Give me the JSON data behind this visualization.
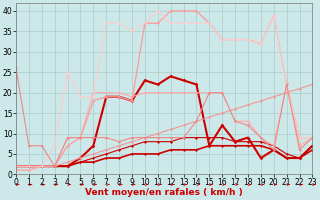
{
  "background_color": "#cce8e8",
  "grid_color": "#aacccc",
  "xlabel": "Vent moyen/en rafales ( km/h )",
  "xlabel_color": "#cc0000",
  "xlabel_fontsize": 6.5,
  "ylabel_ticks": [
    0,
    5,
    10,
    15,
    20,
    25,
    30,
    35,
    40
  ],
  "xticks": [
    0,
    1,
    2,
    3,
    4,
    5,
    6,
    7,
    8,
    9,
    10,
    11,
    12,
    13,
    14,
    15,
    16,
    17,
    18,
    19,
    20,
    21,
    22,
    23
  ],
  "xlim": [
    0,
    23
  ],
  "ylim": [
    0,
    42
  ],
  "series": [
    {
      "x": [
        0,
        1,
        2,
        3,
        4,
        5,
        6,
        7,
        8,
        9,
        10,
        11,
        12,
        13,
        14,
        15,
        16,
        17,
        18,
        19,
        20,
        21,
        22,
        23
      ],
      "y": [
        2,
        2,
        2,
        2,
        2,
        3,
        3,
        4,
        4,
        5,
        5,
        5,
        6,
        6,
        6,
        7,
        7,
        7,
        7,
        7,
        6,
        4,
        4,
        6
      ],
      "color": "#cc0000",
      "lw": 1.2,
      "marker": "D",
      "ms": 1.5
    },
    {
      "x": [
        0,
        1,
        2,
        3,
        4,
        5,
        6,
        7,
        8,
        9,
        10,
        11,
        12,
        13,
        14,
        15,
        16,
        17,
        18,
        19,
        20,
        21,
        22,
        23
      ],
      "y": [
        2,
        2,
        2,
        2,
        2,
        3,
        4,
        5,
        6,
        7,
        8,
        8,
        8,
        9,
        9,
        9,
        9,
        8,
        8,
        8,
        7,
        5,
        4,
        7
      ],
      "color": "#cc0000",
      "lw": 0.8,
      "marker": "D",
      "ms": 1.5
    },
    {
      "x": [
        0,
        1,
        2,
        3,
        4,
        5,
        6,
        7,
        8,
        9,
        10,
        11,
        12,
        13,
        14,
        15,
        16,
        17,
        18,
        19,
        20,
        21,
        22,
        23
      ],
      "y": [
        2,
        2,
        2,
        2,
        2,
        4,
        7,
        19,
        19,
        18,
        23,
        22,
        24,
        23,
        22,
        7,
        12,
        8,
        9,
        4,
        6,
        4,
        4,
        7
      ],
      "color": "#cc0000",
      "lw": 1.5,
      "marker": "D",
      "ms": 1.8
    },
    {
      "x": [
        0,
        1,
        2,
        3,
        4,
        5,
        6,
        7,
        8,
        9,
        10,
        11,
        12,
        13,
        14,
        15,
        16,
        17,
        18,
        19,
        20,
        21,
        22,
        23
      ],
      "y": [
        1,
        1,
        2,
        2,
        3,
        4,
        5,
        6,
        7,
        8,
        9,
        10,
        11,
        12,
        13,
        14,
        15,
        16,
        17,
        18,
        19,
        20,
        21,
        22
      ],
      "color": "#ee9999",
      "lw": 0.8,
      "marker": "D",
      "ms": 1.5
    },
    {
      "x": [
        0,
        1,
        2,
        3,
        4,
        5,
        6,
        7,
        8,
        9,
        10,
        11,
        12,
        13,
        14,
        15,
        16,
        17,
        18,
        19,
        20,
        21,
        22,
        23
      ],
      "y": [
        1,
        1,
        2,
        2,
        9,
        9,
        20,
        20,
        20,
        19,
        20,
        20,
        20,
        20,
        20,
        20,
        20,
        13,
        13,
        9,
        7,
        22,
        7,
        9
      ],
      "color": "#ffaaaa",
      "lw": 0.8,
      "marker": "D",
      "ms": 1.5
    },
    {
      "x": [
        0,
        1,
        2,
        3,
        4,
        5,
        6,
        7,
        8,
        9,
        10,
        11,
        12,
        13,
        14,
        15,
        16,
        17,
        18,
        19,
        20,
        21,
        22,
        23
      ],
      "y": [
        2,
        2,
        2,
        2,
        7,
        9,
        18,
        19,
        19,
        18,
        37,
        37,
        40,
        40,
        40,
        37,
        33,
        33,
        33,
        32,
        39,
        22,
        9,
        9
      ],
      "color": "#ff9999",
      "lw": 0.9,
      "marker": "D",
      "ms": 1.5
    },
    {
      "x": [
        0,
        1,
        2,
        3,
        4,
        5,
        6,
        7,
        8,
        9,
        10,
        11,
        12,
        13,
        14,
        15,
        16,
        17,
        18,
        19,
        20,
        21,
        22,
        23
      ],
      "y": [
        2,
        2,
        2,
        7,
        25,
        19,
        19,
        37,
        37,
        35,
        37,
        40,
        37,
        37,
        37,
        37,
        33,
        33,
        33,
        32,
        39,
        22,
        9,
        9
      ],
      "color": "#ffcccc",
      "lw": 0.8,
      "marker": "D",
      "ms": 1.5
    },
    {
      "x": [
        0,
        1,
        2,
        3,
        4,
        5,
        6,
        7,
        8,
        9,
        10,
        11,
        12,
        13,
        14,
        15,
        16,
        17,
        18,
        19,
        20,
        21,
        22,
        23
      ],
      "y": [
        26,
        7,
        7,
        2,
        9,
        9,
        9,
        9,
        8,
        9,
        9,
        9,
        9,
        9,
        13,
        20,
        20,
        13,
        12,
        9,
        6,
        22,
        6,
        9
      ],
      "color": "#ee8888",
      "lw": 0.8,
      "marker": "D",
      "ms": 1.5
    }
  ],
  "arrow_color": "#cc0000",
  "tick_fontsize": 5.5
}
